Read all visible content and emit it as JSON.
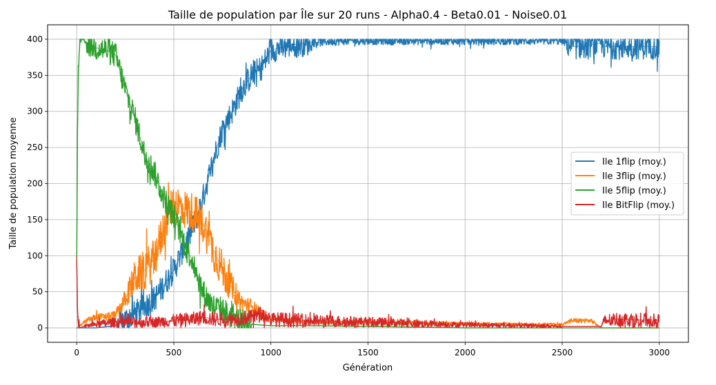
{
  "chart_data": {
    "type": "line",
    "title": "Taille de population par Île sur 20 runs - Alpha0.4 - Beta0.01 - Noise0.01",
    "xlabel": "Génération",
    "ylabel": "Taille de population moyenne",
    "xlim": [
      -150,
      3150
    ],
    "ylim": [
      -20,
      420
    ],
    "xticks": [
      0,
      500,
      1000,
      1500,
      2000,
      2500,
      3000
    ],
    "yticks": [
      0,
      50,
      100,
      150,
      200,
      250,
      300,
      350,
      400
    ],
    "grid": true,
    "legend_position": "center-right",
    "series": [
      {
        "name": "Ile 1flip (moy.)",
        "color": "#1f77b4",
        "x": [
          0,
          100,
          200,
          300,
          400,
          450,
          500,
          550,
          600,
          650,
          700,
          750,
          800,
          850,
          900,
          950,
          1000,
          1100,
          1200,
          1300,
          1400,
          1500,
          1600,
          1700,
          1800,
          1900,
          2000,
          2200,
          2400,
          2500,
          2550,
          2600,
          2700,
          2720,
          2800,
          3000
        ],
        "y": [
          0,
          0,
          3,
          20,
          40,
          60,
          80,
          110,
          140,
          180,
          230,
          275,
          300,
          330,
          350,
          360,
          385,
          392,
          395,
          397,
          398,
          398,
          398,
          398,
          398,
          398,
          398,
          398,
          398,
          398,
          390,
          390,
          395,
          390,
          390,
          390
        ]
      },
      {
        "name": "Ile 3flip (moy.)",
        "color": "#ff7f0e",
        "x": [
          0,
          50,
          100,
          150,
          200,
          250,
          300,
          350,
          400,
          450,
          500,
          550,
          600,
          650,
          700,
          750,
          800,
          850,
          900,
          950,
          1000,
          1100,
          1200,
          1500,
          2000,
          2400,
          2500,
          2550,
          2650,
          2700,
          3000
        ],
        "y": [
          0,
          10,
          15,
          15,
          18,
          40,
          70,
          80,
          95,
          140,
          175,
          165,
          160,
          145,
          110,
          80,
          55,
          35,
          30,
          20,
          12,
          10,
          8,
          8,
          6,
          5,
          5,
          10,
          10,
          0,
          0
        ]
      },
      {
        "name": "Ile 5flip (moy.)",
        "color": "#2ca02c",
        "x": [
          0,
          5,
          15,
          30,
          50,
          100,
          150,
          200,
          250,
          300,
          350,
          400,
          450,
          500,
          550,
          600,
          650,
          700,
          750,
          800,
          850,
          900,
          1000,
          1200,
          1500,
          2000,
          2500,
          3000
        ],
        "y": [
          100,
          300,
          400,
          400,
          395,
          388,
          385,
          378,
          330,
          290,
          240,
          215,
          180,
          155,
          120,
          90,
          50,
          30,
          25,
          15,
          8,
          5,
          3,
          3,
          2,
          0,
          0,
          0
        ]
      },
      {
        "name": "Ile BitFlip (moy.)",
        "color": "#d62728",
        "x": [
          0,
          5,
          15,
          50,
          100,
          200,
          300,
          400,
          500,
          600,
          650,
          700,
          800,
          900,
          950,
          1000,
          1200,
          1500,
          2000,
          2400,
          2500,
          2700,
          2720,
          2800,
          3000
        ],
        "y": [
          100,
          20,
          0,
          3,
          5,
          8,
          8,
          8,
          10,
          12,
          15,
          12,
          12,
          15,
          20,
          12,
          10,
          8,
          4,
          3,
          2,
          2,
          10,
          12,
          10
        ]
      }
    ]
  }
}
